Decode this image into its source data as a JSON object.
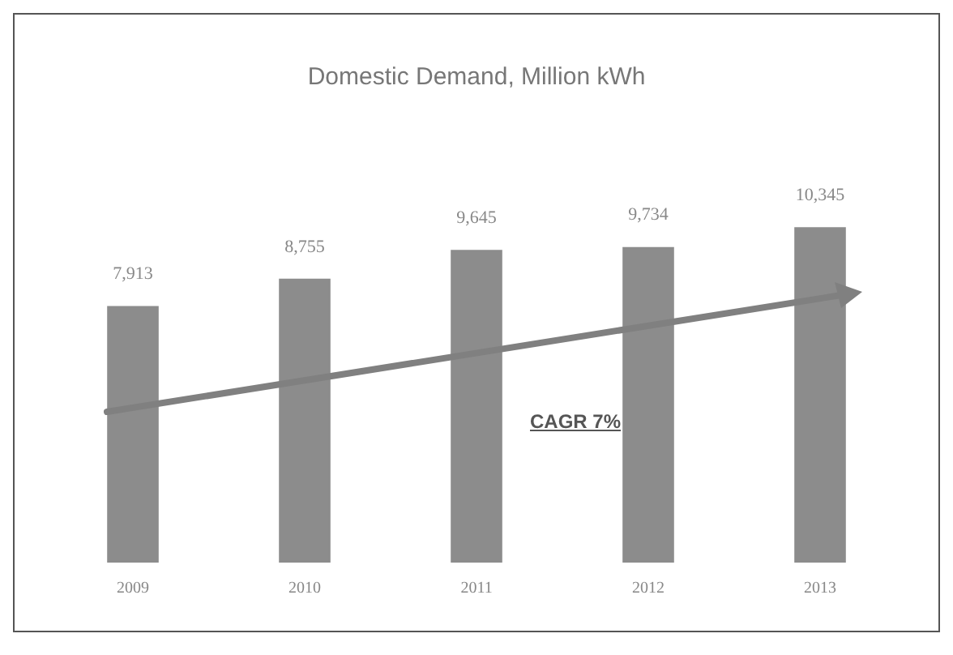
{
  "chart_data": {
    "type": "bar",
    "title": "Domestic Demand, Million kWh",
    "categories": [
      "2009",
      "2010",
      "2011",
      "2012",
      "2013"
    ],
    "values": [
      7913,
      8755,
      9645,
      9734,
      10345
    ],
    "value_labels": [
      "7,913",
      "8,755",
      "9,645",
      "9,734",
      "10,345"
    ],
    "color": "#8c8c8c",
    "annotations": [
      "CAGR 7%"
    ],
    "grid": false,
    "legend": false
  }
}
